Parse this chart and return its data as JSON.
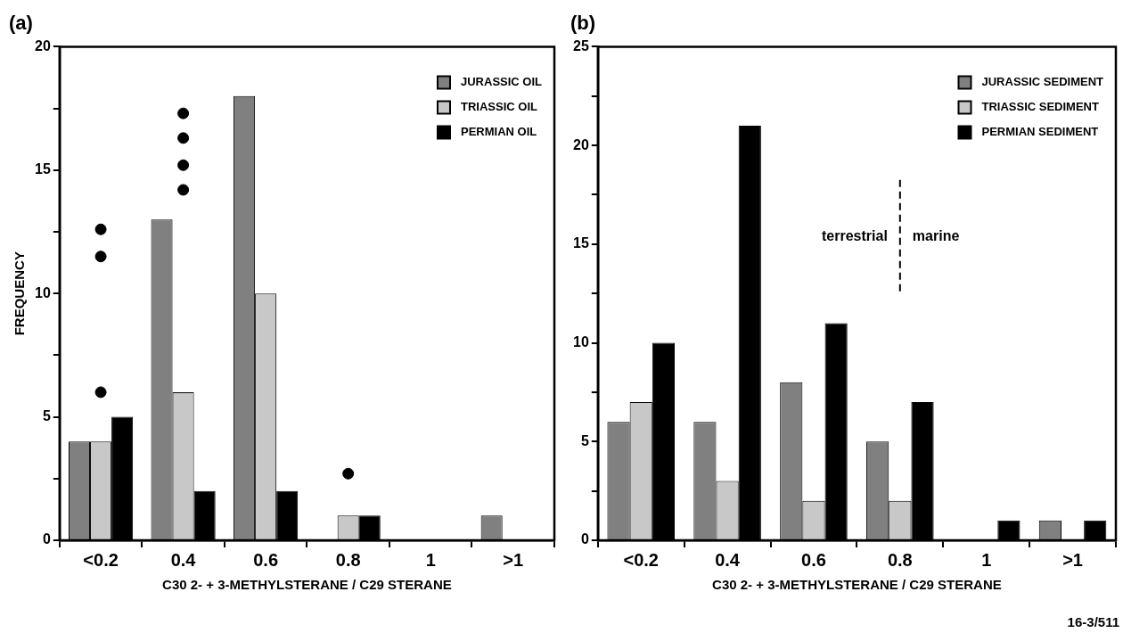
{
  "chart_data": [
    {
      "type": "bar",
      "title": "(a)",
      "xlabel": "C30 2- + 3-METHYLSTERANE / C29 STERANE",
      "ylabel": "FREQUENCY",
      "categories": [
        "<0.2",
        "0.4",
        "0.6",
        "0.8",
        "1",
        ">1"
      ],
      "series": [
        {
          "name": "JURASSIC OIL",
          "color": "#808080",
          "values": [
            4,
            13,
            18,
            0,
            0,
            1
          ]
        },
        {
          "name": "TRIASSIC OIL",
          "color": "#c8c8c8",
          "values": [
            4,
            6,
            10,
            1,
            0,
            0
          ]
        },
        {
          "name": "PERMIAN OIL",
          "color": "#000000",
          "values": [
            5,
            2,
            2,
            1,
            0,
            0
          ]
        },
        {
          "type": "scatter",
          "color": "#000000",
          "x": [
            "<0.2",
            "<0.2",
            "<0.2",
            "0.4",
            "0.4",
            "0.4",
            "0.4",
            "0.8"
          ],
          "values": [
            6,
            11.5,
            12.6,
            14.2,
            15.2,
            16.3,
            17.3,
            2.7
          ]
        }
      ],
      "ylim": [
        0,
        20
      ],
      "yticks": [
        0,
        {
          "value": 2.5,
          "label": null
        },
        5,
        {
          "value": 7.5,
          "label": null
        },
        10,
        {
          "value": 12.5,
          "label": null
        },
        15,
        {
          "value": 17.5,
          "label": null
        },
        20
      ],
      "grid": false,
      "legend": "top right",
      "marker": "circle"
    },
    {
      "type": "bar",
      "title": "(b)",
      "xlabel": "C30 2- + 3-METHYLSTERANE / C29 STERANE",
      "categories": [
        "<0.2",
        "0.4",
        "0.6",
        "0.8",
        "1",
        ">1"
      ],
      "series": [
        {
          "name": "JURASSIC SEDIMENT",
          "color": "#808080",
          "values": [
            6,
            6,
            8,
            5,
            0,
            1
          ]
        },
        {
          "name": "TRIASSIC SEDIMENT",
          "color": "#c8c8c8",
          "values": [
            7,
            3,
            2,
            2,
            0,
            0
          ]
        },
        {
          "name": "PERMIAN SEDIMENT",
          "color": "#000000",
          "values": [
            10,
            21,
            11,
            7,
            1,
            1
          ]
        }
      ],
      "ylim": [
        0,
        25
      ],
      "yticks": [
        0,
        {
          "value": 2.5,
          "label": null
        },
        5,
        {
          "value": 7.5,
          "label": null
        },
        10,
        {
          "value": 12.5,
          "label": null
        },
        15,
        {
          "value": 17.5,
          "label": null
        },
        20,
        {
          "value": 22.5,
          "label": null
        },
        25
      ],
      "ref_lines": [
        {
          "axis": "x",
          "value": "0.8",
          "line_style": "dashed",
          "color": "#000000"
        }
      ],
      "annotations": [
        "terrestrial",
        "marine",
        "16-3/511"
      ],
      "grid": false,
      "legend": "top right"
    }
  ]
}
